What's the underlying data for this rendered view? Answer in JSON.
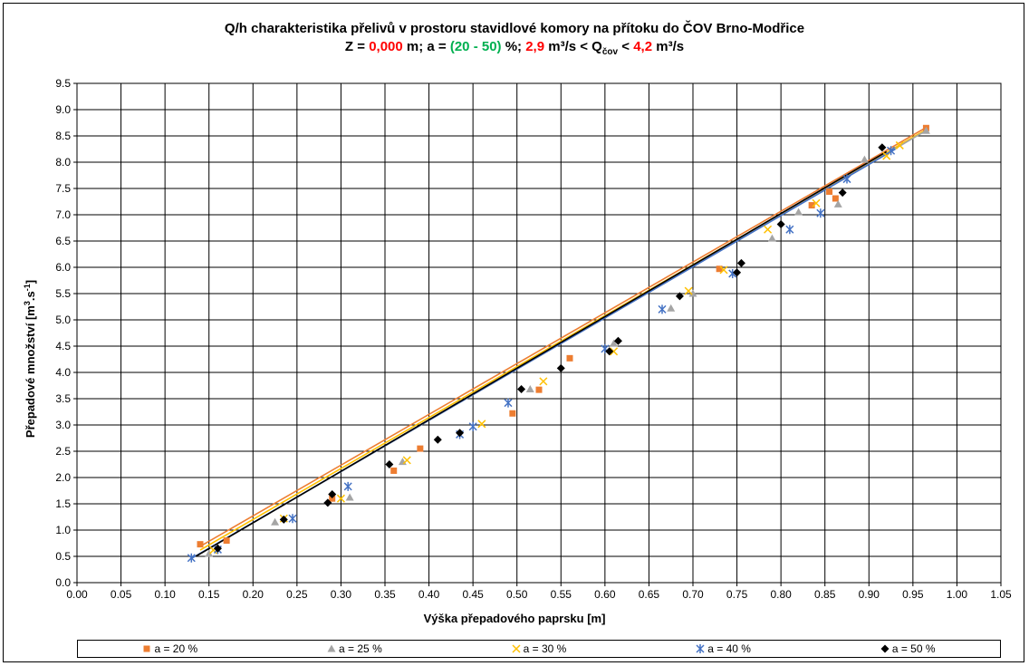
{
  "title": {
    "line1": "Q/h charakteristika přelivů v prostoru stavidlové komory na přítoku do ČOV Brno-Modřice",
    "line2": {
      "p1": "Z = ",
      "z_value": "0,000",
      "p2": " m; a = ",
      "a_range": "(20 - 50)",
      "p3": " %; ",
      "q_min": "2,9",
      "p4": " m³/s < Q",
      "q_sub": "čov",
      "p5": " < ",
      "q_max": "4,2",
      "p6": " m³/s"
    }
  },
  "chart_data": {
    "type": "scatter",
    "xlabel": "Výška přepadového paprsku [m]",
    "ylabel_main": "Přepadové množství [m",
    "ylabel_sup1": "3",
    "ylabel_mid": ".s",
    "ylabel_sup2": "-1",
    "ylabel_end": "]",
    "xlim": [
      0,
      1.05
    ],
    "ylim": [
      0,
      9.5
    ],
    "x_ticks": [
      "0.00",
      "0.05",
      "0.10",
      "0.15",
      "0.20",
      "0.25",
      "0.30",
      "0.35",
      "0.40",
      "0.45",
      "0.50",
      "0.55",
      "0.60",
      "0.65",
      "0.70",
      "0.75",
      "0.80",
      "0.85",
      "0.90",
      "0.95",
      "1.00",
      "1.05"
    ],
    "y_ticks": [
      "0.0",
      "0.5",
      "1.0",
      "1.5",
      "2.0",
      "2.5",
      "3.0",
      "3.5",
      "4.0",
      "4.5",
      "5.0",
      "5.5",
      "6.0",
      "6.5",
      "7.0",
      "7.5",
      "8.0",
      "8.5",
      "9.0",
      "9.5"
    ],
    "grid": true,
    "legend_position": "bottom",
    "series": [
      {
        "name": "a = 20 %",
        "color": "#ed7d31",
        "marker": "square",
        "points": [
          [
            0.14,
            0.73
          ],
          [
            0.17,
            0.8
          ],
          [
            0.29,
            1.6
          ],
          [
            0.36,
            2.13
          ],
          [
            0.39,
            2.55
          ],
          [
            0.495,
            3.22
          ],
          [
            0.525,
            3.67
          ],
          [
            0.56,
            4.27
          ],
          [
            0.73,
            5.97
          ],
          [
            0.835,
            7.18
          ],
          [
            0.855,
            7.44
          ],
          [
            0.862,
            7.31
          ],
          [
            0.965,
            8.65
          ]
        ]
      },
      {
        "name": "a = 25 %",
        "color": "#a5a5a5",
        "marker": "triangle",
        "points": [
          [
            0.15,
            0.55
          ],
          [
            0.225,
            1.15
          ],
          [
            0.31,
            1.62
          ],
          [
            0.37,
            2.3
          ],
          [
            0.515,
            3.68
          ],
          [
            0.61,
            4.55
          ],
          [
            0.675,
            5.22
          ],
          [
            0.7,
            5.5
          ],
          [
            0.79,
            6.55
          ],
          [
            0.82,
            7.05
          ],
          [
            0.865,
            7.2
          ],
          [
            0.895,
            8.05
          ],
          [
            0.965,
            8.6
          ]
        ]
      },
      {
        "name": "a = 30 %",
        "color": "#ffc000",
        "marker": "x",
        "points": [
          [
            0.155,
            0.62
          ],
          [
            0.235,
            1.22
          ],
          [
            0.3,
            1.6
          ],
          [
            0.375,
            2.33
          ],
          [
            0.46,
            3.02
          ],
          [
            0.53,
            3.83
          ],
          [
            0.61,
            4.4
          ],
          [
            0.695,
            5.55
          ],
          [
            0.735,
            5.95
          ],
          [
            0.785,
            6.72
          ],
          [
            0.84,
            7.22
          ],
          [
            0.92,
            8.12
          ],
          [
            0.935,
            8.32
          ]
        ]
      },
      {
        "name": "a = 40 %",
        "color": "#4472c4",
        "marker": "star",
        "points": [
          [
            0.13,
            0.47
          ],
          [
            0.16,
            0.63
          ],
          [
            0.245,
            1.22
          ],
          [
            0.308,
            1.83
          ],
          [
            0.435,
            2.82
          ],
          [
            0.45,
            2.97
          ],
          [
            0.49,
            3.42
          ],
          [
            0.6,
            4.45
          ],
          [
            0.665,
            5.2
          ],
          [
            0.745,
            5.88
          ],
          [
            0.81,
            6.72
          ],
          [
            0.845,
            7.03
          ],
          [
            0.875,
            7.68
          ],
          [
            0.925,
            8.22
          ]
        ]
      },
      {
        "name": "a = 50 %",
        "color": "#000000",
        "marker": "diamond",
        "points": [
          [
            0.16,
            0.65
          ],
          [
            0.235,
            1.2
          ],
          [
            0.285,
            1.52
          ],
          [
            0.29,
            1.68
          ],
          [
            0.355,
            2.25
          ],
          [
            0.41,
            2.72
          ],
          [
            0.435,
            2.85
          ],
          [
            0.505,
            3.68
          ],
          [
            0.55,
            4.08
          ],
          [
            0.605,
            4.4
          ],
          [
            0.615,
            4.6
          ],
          [
            0.685,
            5.45
          ],
          [
            0.75,
            5.9
          ],
          [
            0.755,
            6.08
          ],
          [
            0.8,
            6.82
          ],
          [
            0.87,
            7.42
          ],
          [
            0.915,
            8.28
          ]
        ]
      }
    ],
    "trendlines": [
      {
        "color": "#ed7d31",
        "from": [
          0.14,
          0.69
        ],
        "to": [
          0.965,
          8.66
        ]
      },
      {
        "color": "#ffc000",
        "from": [
          0.14,
          0.62
        ],
        "to": [
          0.965,
          8.62
        ]
      },
      {
        "color": "#a5a5a5",
        "from": [
          0.14,
          0.55
        ],
        "to": [
          0.965,
          8.6
        ]
      },
      {
        "color": "#4472c4",
        "from": [
          0.13,
          0.46
        ],
        "to": [
          0.93,
          8.25
        ]
      },
      {
        "color": "#000000",
        "from": [
          0.135,
          0.5
        ],
        "to": [
          0.92,
          8.2
        ]
      }
    ]
  }
}
